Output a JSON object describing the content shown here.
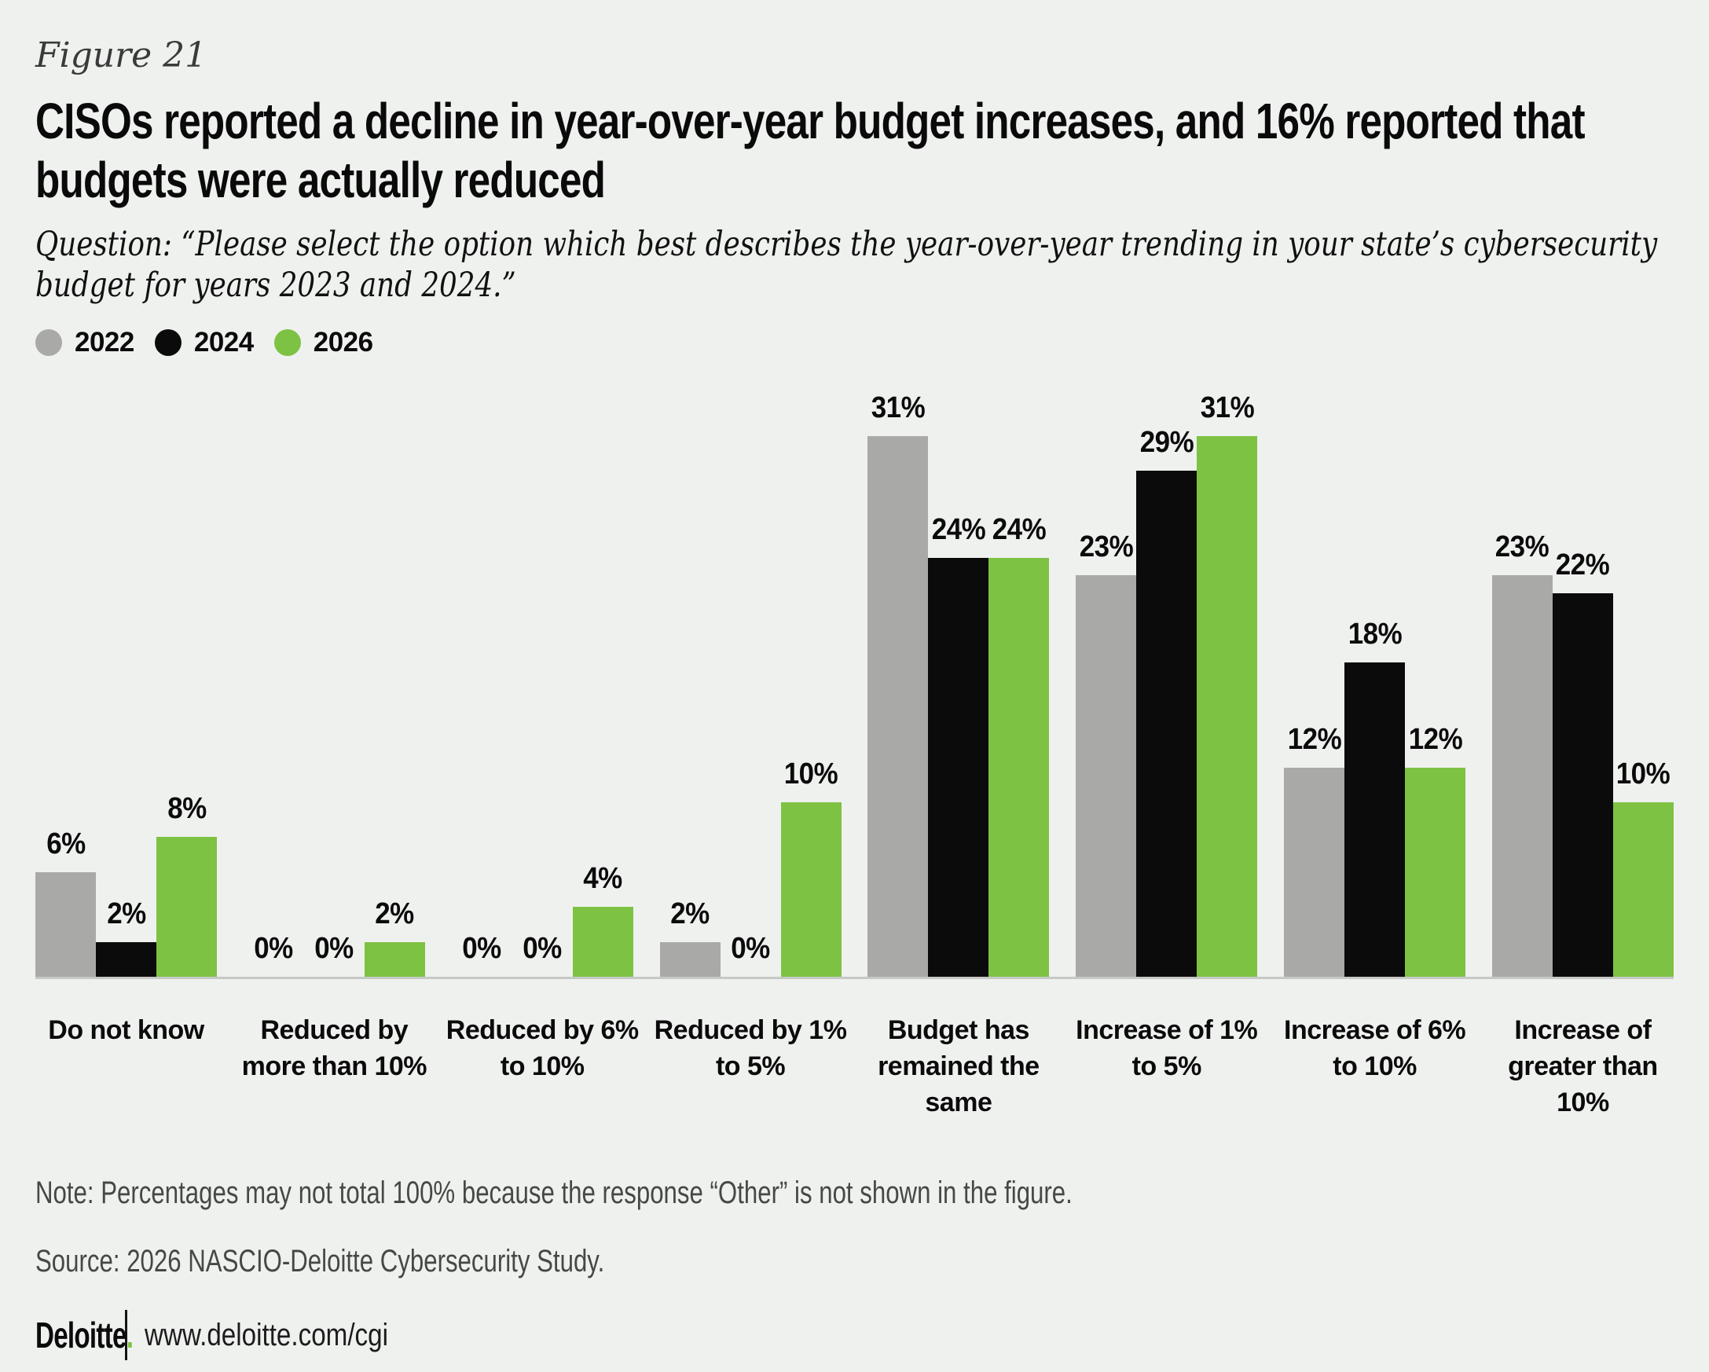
{
  "figure_label": "Figure 21",
  "title": "CISOs reported a decline in year-over-year budget increases, and 16% reported that budgets were actually reduced",
  "question": "Question: “Please select the option which best describes the year-over-year trending in your state’s cybersecurity budget for years 2023 and 2024.”",
  "legend": [
    {
      "label": "2022",
      "color": "#a9aaa7"
    },
    {
      "label": "2024",
      "color": "#0b0b0b"
    },
    {
      "label": "2026",
      "color": "#7dc243"
    }
  ],
  "chart_data": {
    "type": "bar",
    "title": "Year-over-year trending in state cybersecurity budget",
    "categories": [
      "Do not know",
      "Reduced by more than 10%",
      "Reduced by 6% to 10%",
      "Reduced by 1% to 5%",
      "Budget has remained the same",
      "Increase of 1% to 5%",
      "Increase of 6% to 10%",
      "Increase of greater than 10%"
    ],
    "series": [
      {
        "name": "2022",
        "color": "#a9aaa7",
        "values": [
          6,
          0,
          0,
          2,
          31,
          23,
          12,
          23
        ]
      },
      {
        "name": "2024",
        "color": "#0b0b0b",
        "values": [
          2,
          0,
          0,
          0,
          24,
          29,
          18,
          22
        ]
      },
      {
        "name": "2026",
        "color": "#7dc243",
        "values": [
          8,
          2,
          4,
          10,
          24,
          31,
          12,
          10
        ]
      }
    ],
    "value_suffix": "%",
    "value_labels": true,
    "ylim": [
      0,
      34
    ],
    "grid": false,
    "legend_position": "top-left"
  },
  "note": "Note: Percentages may not total 100% because the response “Other” is not shown in the figure.",
  "source": "Source: 2026 NASCIO-Deloitte Cybersecurity Study.",
  "footer": {
    "brand": "Deloitte",
    "brand_dot": ".",
    "url": "www.deloitte.com/cgi"
  },
  "colors": {
    "background": "#eff1ef",
    "axis_line": "#c7c9c7",
    "text": "#0b0b0b",
    "muted_text": "#454946",
    "brand_green": "#7dc243"
  }
}
